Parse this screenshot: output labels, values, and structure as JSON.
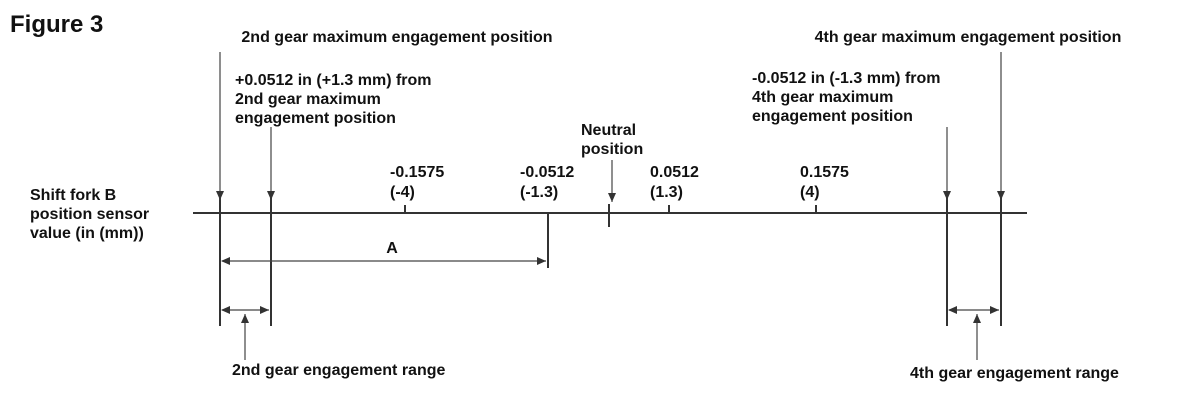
{
  "title": "Figure 3",
  "axis_label": [
    "Shift fork B",
    "position sensor",
    "value (in (mm))"
  ],
  "second_max_label": "2nd gear maximum engagement position",
  "fourth_max_label": "4th gear maximum engagement position",
  "second_offset_label": [
    "+0.0512 in (+1.3 mm) from",
    "2nd gear maximum",
    "engagement position"
  ],
  "fourth_offset_label": [
    "-0.0512 in (-1.3 mm) from",
    "4th gear maximum",
    "engagement position"
  ],
  "neutral_label": [
    "Neutral",
    "position"
  ],
  "tick_labels": [
    [
      "-0.1575",
      "(-4)"
    ],
    [
      "-0.0512",
      "(-1.3)"
    ],
    [
      "0.0512",
      "(1.3)"
    ],
    [
      "0.1575",
      "(4)"
    ]
  ],
  "span_label": "A",
  "second_range_label": "2nd gear engagement range",
  "fourth_range_label": "4th gear engagement range"
}
